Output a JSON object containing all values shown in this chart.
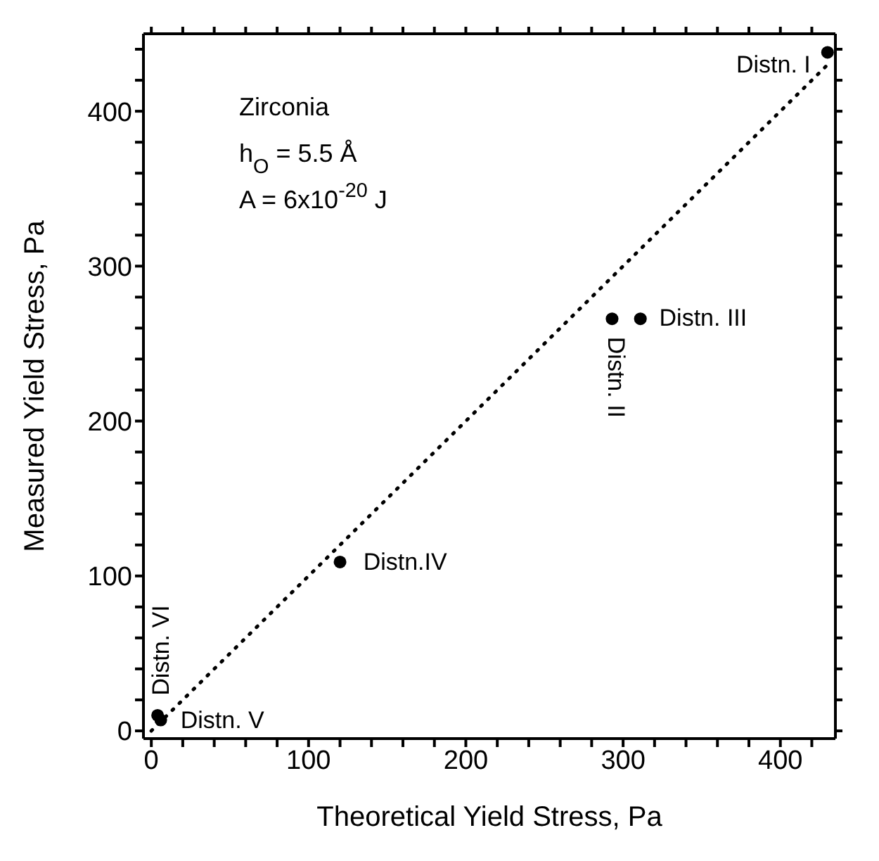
{
  "chart_data": {
    "type": "scatter",
    "xlabel": "Theoretical Yield Stress, Pa",
    "ylabel": "Measured Yield Stress, Pa",
    "xlim": [
      -5,
      435
    ],
    "ylim": [
      -5,
      450
    ],
    "xticks": [
      0,
      {
        "value": 20,
        "label": null
      },
      {
        "value": 40,
        "label": null
      },
      {
        "value": 60,
        "label": null
      },
      {
        "value": 80,
        "label": null
      },
      100,
      {
        "value": 120,
        "label": null
      },
      {
        "value": 140,
        "label": null
      },
      {
        "value": 160,
        "label": null
      },
      {
        "value": 180,
        "label": null
      },
      200,
      {
        "value": 220,
        "label": null
      },
      {
        "value": 240,
        "label": null
      },
      {
        "value": 260,
        "label": null
      },
      {
        "value": 280,
        "label": null
      },
      300,
      {
        "value": 320,
        "label": null
      },
      {
        "value": 340,
        "label": null
      },
      {
        "value": 360,
        "label": null
      },
      {
        "value": 380,
        "label": null
      },
      400,
      {
        "value": 420,
        "label": null
      }
    ],
    "yticks": [
      0,
      {
        "value": 20,
        "label": null
      },
      {
        "value": 40,
        "label": null
      },
      {
        "value": 60,
        "label": null
      },
      {
        "value": 80,
        "label": null
      },
      100,
      {
        "value": 120,
        "label": null
      },
      {
        "value": 140,
        "label": null
      },
      {
        "value": 160,
        "label": null
      },
      {
        "value": 180,
        "label": null
      },
      200,
      {
        "value": 220,
        "label": null
      },
      {
        "value": 240,
        "label": null
      },
      {
        "value": 260,
        "label": null
      },
      {
        "value": 280,
        "label": null
      },
      300,
      {
        "value": 320,
        "label": null
      },
      {
        "value": 340,
        "label": null
      },
      {
        "value": 360,
        "label": null
      },
      {
        "value": 380,
        "label": null
      },
      400,
      {
        "value": 420,
        "label": null
      },
      {
        "value": 440,
        "label": null
      }
    ],
    "grid": false,
    "legend": false,
    "marker": "circle",
    "series": [
      {
        "color": "#000000",
        "x": [
          430,
          293,
          311,
          120,
          6,
          4
        ],
        "values": [
          438,
          266,
          266,
          109,
          7,
          10
        ]
      },
      {
        "type": "line",
        "color": "#000000",
        "line_style": "dotted",
        "marker": "none",
        "x": [
          0,
          430
        ],
        "values": [
          0,
          430
        ]
      }
    ],
    "annotations": [
      {
        "text": "Distn. I",
        "x": 430,
        "y": 438
      },
      {
        "text": "Distn. II",
        "x": 293,
        "y": 266
      },
      {
        "text": "Distn. III",
        "x": 311,
        "y": 266
      },
      {
        "text": "Distn.IV",
        "x": 120,
        "y": 109
      },
      {
        "text": "Distn. V",
        "x": 6,
        "y": 7
      },
      {
        "text": "Distn. VI",
        "x": 4,
        "y": 10
      },
      "Zirconia",
      "h$_{O}$ = 5.5 Å",
      "A = 6x10$^{-20}$ J"
    ]
  }
}
